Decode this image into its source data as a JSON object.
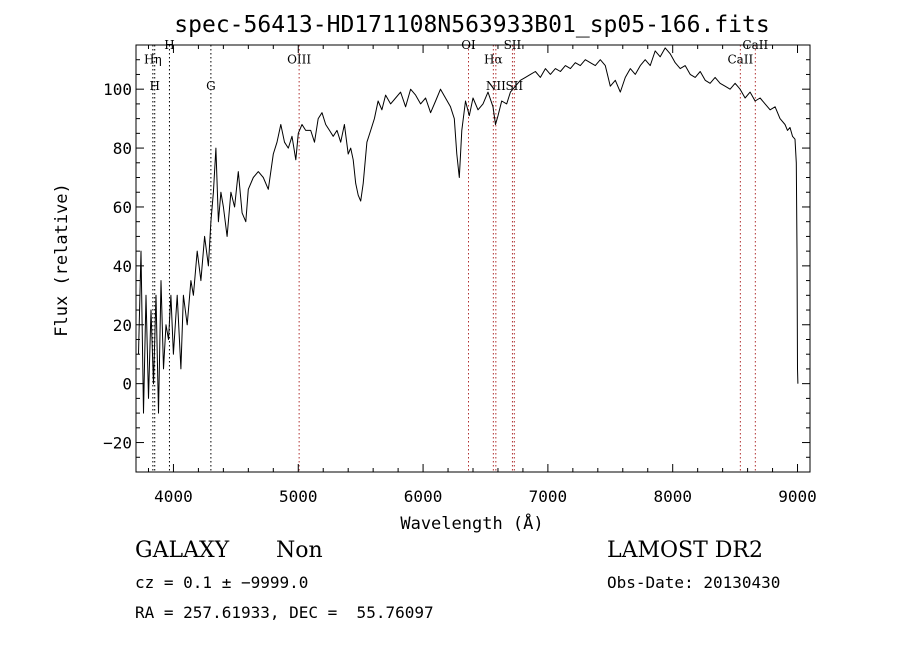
{
  "chart_data": {
    "type": "line",
    "title": "spec-56413-HD171108N563933B01_sp05-166.fits",
    "xlabel": "Wavelength (Å)",
    "ylabel": "Flux (relative)",
    "xlim": [
      3700,
      9100
    ],
    "ylim": [
      -30,
      115
    ],
    "x_ticks": [
      4000,
      5000,
      6000,
      7000,
      8000,
      9000
    ],
    "y_ticks": [
      -20,
      0,
      20,
      40,
      60,
      80,
      100
    ],
    "x_tick_labels": [
      "4000",
      "5000",
      "6000",
      "7000",
      "8000",
      "9000"
    ],
    "y_tick_labels": [
      "−20",
      "0",
      "20",
      "40",
      "60",
      "80",
      "100"
    ],
    "series": [
      {
        "color": "#000000",
        "points": [
          [
            3720,
            10
          ],
          [
            3740,
            45
          ],
          [
            3760,
            -10
          ],
          [
            3780,
            30
          ],
          [
            3800,
            -5
          ],
          [
            3820,
            25
          ],
          [
            3840,
            0
          ],
          [
            3860,
            30
          ],
          [
            3880,
            -10
          ],
          [
            3900,
            35
          ],
          [
            3920,
            5
          ],
          [
            3940,
            20
          ],
          [
            3960,
            15
          ],
          [
            3980,
            30
          ],
          [
            4000,
            10
          ],
          [
            4030,
            30
          ],
          [
            4060,
            5
          ],
          [
            4080,
            30
          ],
          [
            4110,
            20
          ],
          [
            4140,
            35
          ],
          [
            4160,
            30
          ],
          [
            4190,
            45
          ],
          [
            4220,
            35
          ],
          [
            4250,
            50
          ],
          [
            4280,
            40
          ],
          [
            4300,
            55
          ],
          [
            4320,
            65
          ],
          [
            4340,
            80
          ],
          [
            4360,
            55
          ],
          [
            4380,
            65
          ],
          [
            4400,
            60
          ],
          [
            4430,
            50
          ],
          [
            4460,
            65
          ],
          [
            4490,
            60
          ],
          [
            4520,
            72
          ],
          [
            4550,
            58
          ],
          [
            4580,
            55
          ],
          [
            4600,
            66
          ],
          [
            4640,
            70
          ],
          [
            4680,
            72
          ],
          [
            4720,
            70
          ],
          [
            4760,
            66
          ],
          [
            4800,
            78
          ],
          [
            4830,
            82
          ],
          [
            4860,
            88
          ],
          [
            4890,
            82
          ],
          [
            4920,
            80
          ],
          [
            4950,
            84
          ],
          [
            4980,
            76
          ],
          [
            5000,
            85
          ],
          [
            5030,
            88
          ],
          [
            5060,
            86
          ],
          [
            5100,
            86
          ],
          [
            5130,
            82
          ],
          [
            5160,
            90
          ],
          [
            5190,
            92
          ],
          [
            5220,
            88
          ],
          [
            5250,
            86
          ],
          [
            5280,
            84
          ],
          [
            5310,
            86
          ],
          [
            5340,
            82
          ],
          [
            5370,
            88
          ],
          [
            5400,
            78
          ],
          [
            5420,
            80
          ],
          [
            5440,
            76
          ],
          [
            5460,
            68
          ],
          [
            5480,
            64
          ],
          [
            5500,
            62
          ],
          [
            5520,
            68
          ],
          [
            5550,
            82
          ],
          [
            5580,
            86
          ],
          [
            5610,
            90
          ],
          [
            5640,
            96
          ],
          [
            5670,
            93
          ],
          [
            5700,
            98
          ],
          [
            5740,
            95
          ],
          [
            5780,
            97
          ],
          [
            5820,
            99
          ],
          [
            5860,
            94
          ],
          [
            5900,
            100
          ],
          [
            5940,
            98
          ],
          [
            5980,
            95
          ],
          [
            6020,
            97
          ],
          [
            6060,
            92
          ],
          [
            6100,
            96
          ],
          [
            6140,
            100
          ],
          [
            6180,
            97
          ],
          [
            6220,
            94
          ],
          [
            6250,
            90
          ],
          [
            6270,
            78
          ],
          [
            6290,
            70
          ],
          [
            6310,
            86
          ],
          [
            6340,
            96
          ],
          [
            6370,
            91
          ],
          [
            6400,
            97
          ],
          [
            6440,
            93
          ],
          [
            6480,
            95
          ],
          [
            6520,
            99
          ],
          [
            6560,
            94
          ],
          [
            6580,
            88
          ],
          [
            6600,
            91
          ],
          [
            6630,
            96
          ],
          [
            6670,
            95
          ],
          [
            6700,
            99
          ],
          [
            6740,
            101
          ],
          [
            6780,
            103
          ],
          [
            6820,
            104
          ],
          [
            6860,
            105
          ],
          [
            6900,
            106
          ],
          [
            6940,
            104
          ],
          [
            6980,
            107
          ],
          [
            7020,
            105
          ],
          [
            7060,
            107
          ],
          [
            7100,
            106
          ],
          [
            7140,
            108
          ],
          [
            7180,
            107
          ],
          [
            7220,
            109
          ],
          [
            7260,
            108
          ],
          [
            7300,
            110
          ],
          [
            7340,
            109
          ],
          [
            7380,
            108
          ],
          [
            7420,
            110
          ],
          [
            7460,
            108
          ],
          [
            7500,
            101
          ],
          [
            7540,
            103
          ],
          [
            7580,
            99
          ],
          [
            7620,
            104
          ],
          [
            7660,
            107
          ],
          [
            7700,
            105
          ],
          [
            7740,
            108
          ],
          [
            7780,
            110
          ],
          [
            7820,
            108
          ],
          [
            7860,
            113
          ],
          [
            7900,
            111
          ],
          [
            7940,
            114
          ],
          [
            7980,
            112
          ],
          [
            8020,
            109
          ],
          [
            8060,
            107
          ],
          [
            8100,
            108
          ],
          [
            8140,
            105
          ],
          [
            8180,
            104
          ],
          [
            8220,
            106
          ],
          [
            8260,
            103
          ],
          [
            8300,
            102
          ],
          [
            8340,
            104
          ],
          [
            8380,
            102
          ],
          [
            8420,
            101
          ],
          [
            8460,
            100
          ],
          [
            8500,
            102
          ],
          [
            8540,
            100
          ],
          [
            8580,
            97
          ],
          [
            8620,
            99
          ],
          [
            8660,
            96
          ],
          [
            8700,
            97
          ],
          [
            8740,
            95
          ],
          [
            8780,
            93
          ],
          [
            8820,
            94
          ],
          [
            8860,
            90
          ],
          [
            8900,
            88
          ],
          [
            8920,
            86
          ],
          [
            8940,
            87
          ],
          [
            8960,
            84
          ],
          [
            8980,
            83
          ],
          [
            8990,
            75
          ],
          [
            8996,
            45
          ],
          [
            9000,
            5
          ],
          [
            9003,
            0
          ]
        ]
      }
    ],
    "lines": [
      {
        "x": 3835,
        "label": "Hη",
        "label_y": 110,
        "color": "#000000"
      },
      {
        "x": 3850,
        "label": "H",
        "label_y": 101,
        "color": "#000000"
      },
      {
        "x": 3968,
        "label": "H",
        "label_y": 115,
        "color": "#000000"
      },
      {
        "x": 4300,
        "label": "G",
        "label_y": 101,
        "color": "#000000"
      },
      {
        "x": 5007,
        "label": "OIII",
        "label_y": 110,
        "color": "#b03030"
      },
      {
        "x": 6364,
        "label": "OI",
        "label_y": 115,
        "color": "#b03030"
      },
      {
        "x": 6563,
        "label": "Hα",
        "label_y": 110,
        "color": "#b03030"
      },
      {
        "x": 6583,
        "label": "NII",
        "label_y": 101,
        "color": "#b03030"
      },
      {
        "x": 6716,
        "label": "SII",
        "label_y": 115,
        "color": "#b03030"
      },
      {
        "x": 6731,
        "label": "SII",
        "label_y": 101,
        "color": "#b03030"
      },
      {
        "x": 8542,
        "label": "CaII",
        "label_y": 110,
        "color": "#b03030"
      },
      {
        "x": 8662,
        "label": "CaII",
        "label_y": 115,
        "color": "#b03030"
      }
    ]
  },
  "info": {
    "class": "GALAXY",
    "subclass": "Non",
    "cz": "cz = 0.1 ± −9999.0",
    "coords": "RA = 257.61933, DEC =  55.76097",
    "survey": "LAMOST DR2",
    "obs_date": "Obs-Date: 20130430"
  }
}
